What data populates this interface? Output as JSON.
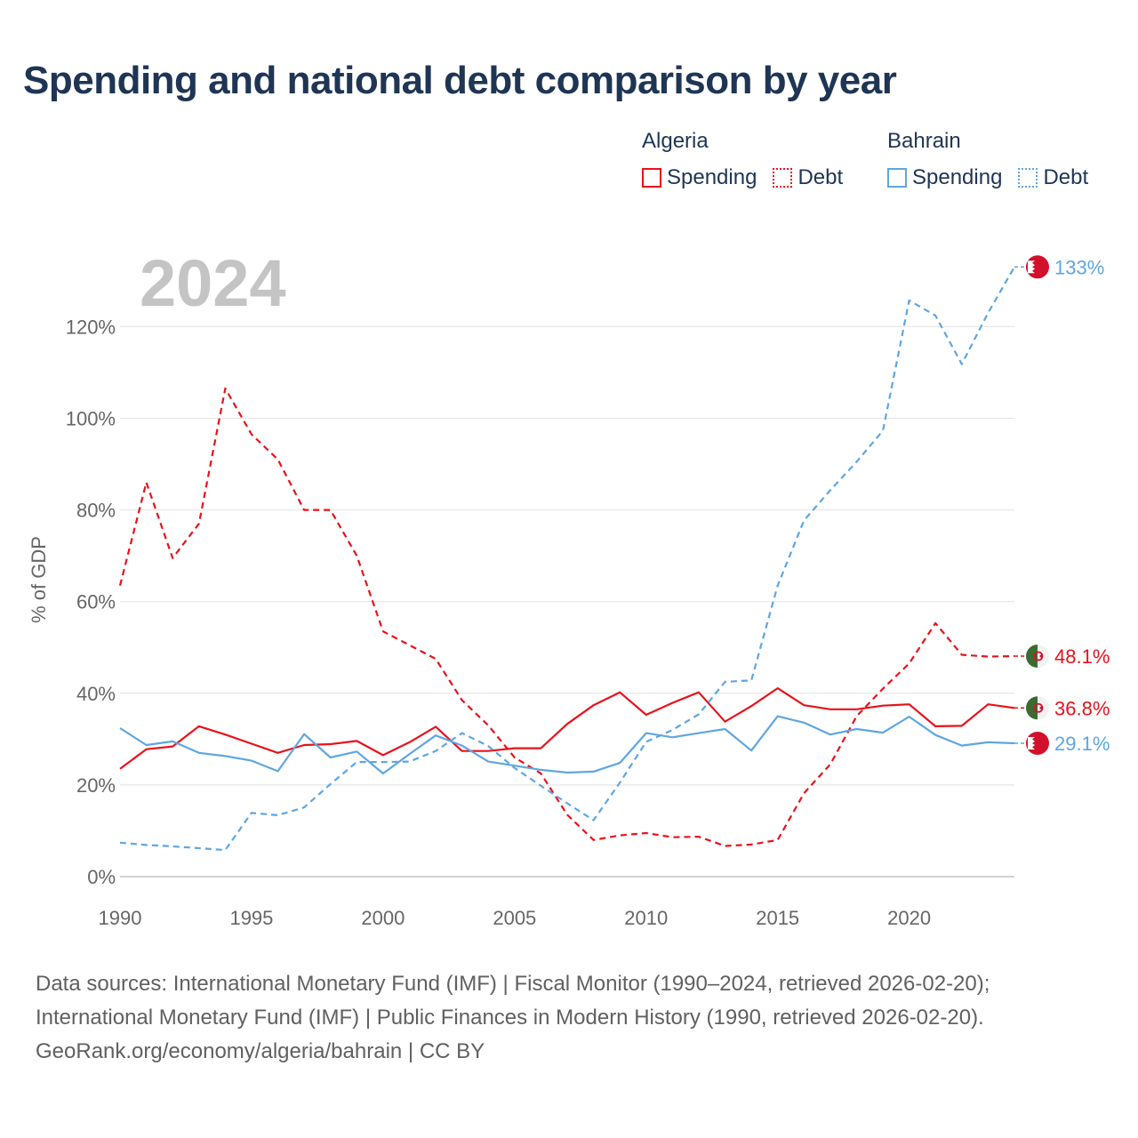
{
  "title": "Spending and national debt comparison by year",
  "legend": {
    "groups": [
      {
        "name": "Algeria",
        "color": "#e8121b",
        "items": [
          {
            "label": "Spending",
            "style": "solid"
          },
          {
            "label": "Debt",
            "style": "dotted"
          }
        ]
      },
      {
        "name": "Bahrain",
        "color": "#5ea6e2",
        "items": [
          {
            "label": "Spending",
            "style": "solid"
          },
          {
            "label": "Debt",
            "style": "dotted"
          }
        ]
      }
    ]
  },
  "chart_data": {
    "type": "line",
    "year_watermark": "2024",
    "ylabel": "% of GDP",
    "xlabel": "",
    "xlim": [
      1990,
      2024
    ],
    "ylim": [
      0,
      135
    ],
    "yticks": [
      0,
      20,
      40,
      60,
      80,
      100,
      120
    ],
    "ytick_labels": [
      "0%",
      "20%",
      "40%",
      "60%",
      "80%",
      "100%",
      "120%"
    ],
    "xticks": [
      1990,
      1995,
      2000,
      2005,
      2010,
      2015,
      2020
    ],
    "xtick_labels": [
      "1990",
      "1995",
      "2000",
      "2005",
      "2010",
      "2015",
      "2020"
    ],
    "x": [
      1990,
      1991,
      1992,
      1993,
      1994,
      1995,
      1996,
      1997,
      1998,
      1999,
      2000,
      2001,
      2002,
      2003,
      2004,
      2005,
      2006,
      2007,
      2008,
      2009,
      2010,
      2011,
      2012,
      2013,
      2014,
      2015,
      2016,
      2017,
      2018,
      2019,
      2020,
      2021,
      2022,
      2023,
      2024
    ],
    "series": [
      {
        "name": "Algeria Spending",
        "country": "Algeria",
        "metric": "Spending",
        "color": "#e8121b",
        "dash": "solid",
        "end_label": "36.8%",
        "flag": "algeria",
        "values": [
          23.5,
          27.8,
          28.4,
          32.8,
          31.0,
          29.0,
          27.0,
          28.7,
          28.9,
          29.6,
          26.5,
          29.3,
          32.7,
          27.4,
          27.4,
          28.0,
          28.0,
          33.3,
          37.4,
          40.2,
          35.3,
          37.9,
          40.2,
          33.8,
          37.2,
          41.1,
          37.4,
          36.5,
          36.5,
          37.3,
          37.6,
          32.8,
          32.9,
          37.6,
          36.8
        ]
      },
      {
        "name": "Algeria Debt",
        "country": "Algeria",
        "metric": "Debt",
        "color": "#e8121b",
        "dash": "dashed",
        "end_label": "48.1%",
        "flag": "algeria",
        "values": [
          63.5,
          86.0,
          69.5,
          77.0,
          106.5,
          96.5,
          91.0,
          80.0,
          80.0,
          70.0,
          53.5,
          50.5,
          47.5,
          38.5,
          33.0,
          26.0,
          22.5,
          13.5,
          8.0,
          9.0,
          9.5,
          8.6,
          8.7,
          6.7,
          7.0,
          8.0,
          18.2,
          24.5,
          35.0,
          41.0,
          46.5,
          55.3,
          48.4,
          48.0,
          48.1
        ]
      },
      {
        "name": "Bahrain Spending",
        "country": "Bahrain",
        "metric": "Spending",
        "color": "#5ea6e2",
        "dash": "solid",
        "end_label": "29.1%",
        "flag": "bahrain",
        "values": [
          32.4,
          28.7,
          29.5,
          27.0,
          26.3,
          25.3,
          23.0,
          31.1,
          26.0,
          27.3,
          22.5,
          26.7,
          30.8,
          28.6,
          25.1,
          24.2,
          23.3,
          22.7,
          22.9,
          24.8,
          31.3,
          30.4,
          31.3,
          32.2,
          27.5,
          35.0,
          33.6,
          31.0,
          32.2,
          31.4,
          34.9,
          30.9,
          28.6,
          29.3,
          29.1
        ]
      },
      {
        "name": "Bahrain Debt",
        "country": "Bahrain",
        "metric": "Debt",
        "color": "#5ea6e2",
        "dash": "dashed",
        "end_label": "133%",
        "flag": "bahrain",
        "values": [
          7.4,
          6.9,
          6.6,
          6.2,
          5.8,
          13.9,
          13.4,
          15.1,
          20.2,
          25.0,
          25.0,
          25.1,
          27.4,
          31.3,
          28.5,
          23.7,
          19.8,
          16.0,
          12.3,
          20.5,
          29.4,
          32.0,
          35.4,
          42.5,
          42.8,
          63.5,
          77.7,
          84.3,
          90.5,
          97.3,
          125.7,
          122.4,
          111.8,
          123.0,
          133.0
        ]
      }
    ]
  },
  "footer": {
    "line1": "Data sources: International Monetary Fund (IMF) | Fiscal Monitor (1990–2024, retrieved 2026-02-20);",
    "line2": "International Monetary Fund (IMF) | Public Finances in Modern History (1990, retrieved 2026-02-20).",
    "line3": "GeoRank.org/economy/algeria/bahrain | CC BY"
  }
}
